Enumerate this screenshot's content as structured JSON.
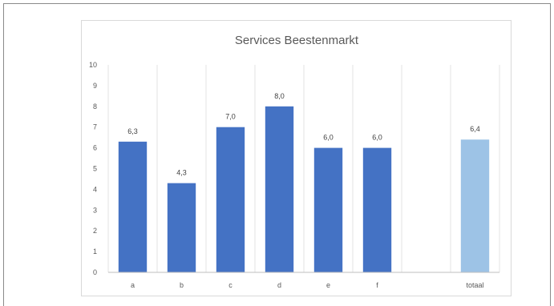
{
  "chart_data": {
    "type": "bar",
    "title": "Services Beestenmarkt",
    "categories": [
      "a",
      "b",
      "c",
      "d",
      "e",
      "f",
      "",
      "totaal"
    ],
    "values": [
      6.3,
      4.3,
      7.0,
      8.0,
      6.0,
      6.0,
      null,
      6.4
    ],
    "data_labels": [
      "6,3",
      "4,3",
      "7,0",
      "8,0",
      "6,0",
      "6,0",
      "",
      "6,4"
    ],
    "ylim": [
      0,
      10
    ],
    "yticks": [
      "0",
      "1",
      "2",
      "3",
      "4",
      "5",
      "6",
      "7",
      "8",
      "9",
      "10"
    ],
    "grid": "vertical",
    "legend": "none",
    "colors": {
      "bar": "#4472c4",
      "total_bar": "#9dc3e6",
      "grid": "#e3e3e3",
      "text": "#595959"
    }
  }
}
